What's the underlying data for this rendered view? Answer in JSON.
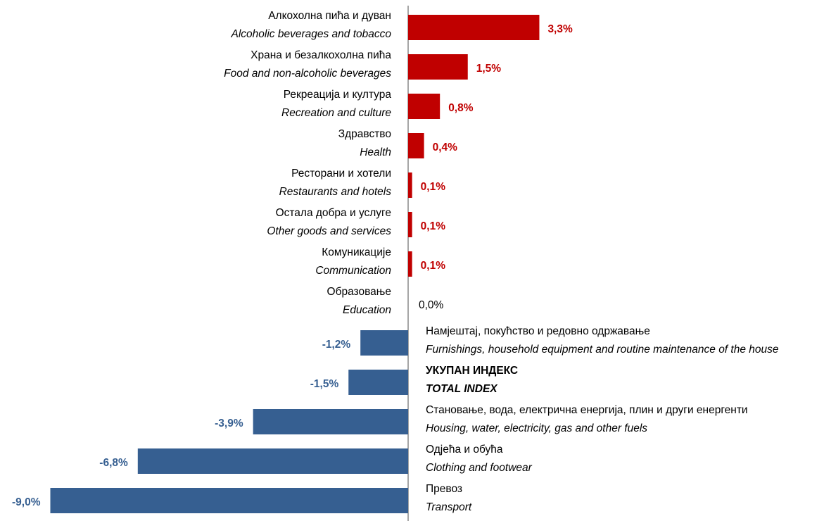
{
  "chart_data": {
    "type": "bar",
    "orientation": "horizontal",
    "categories": [
      [
        "Алкохолна пића и дуван",
        "Alcoholic beverages and tobacco"
      ],
      [
        "Храна и безалкохолна пића",
        "Food and non-alcoholic beverages"
      ],
      [
        "Рекреација и култура",
        "Recreation and culture"
      ],
      [
        "Здравство",
        "Health"
      ],
      [
        "Ресторани и хотели",
        "Restaurants and hotels"
      ],
      [
        "Остала добра и услуге",
        "Other goods and services"
      ],
      [
        "Комуникације",
        "Communication"
      ],
      [
        "Образовање",
        "Education"
      ],
      [
        "Намјештај, покућство и редовно одржавање",
        "Furnishings, household equipment and routine maintenance of the house"
      ],
      [
        "УКУПАН ИНДЕКС",
        "TOTAL INDEX"
      ],
      [
        "Становање, вода, електрична енергија, плин и други енергенти",
        "Housing, water, electricity, gas and other fuels"
      ],
      [
        "Одјећа и обућа",
        "Clothing and footwear"
      ],
      [
        "Превоз",
        "Transport"
      ]
    ],
    "values": [
      3.3,
      1.5,
      0.8,
      0.4,
      0.1,
      0.1,
      0.1,
      0.0,
      -1.2,
      -1.5,
      -3.9,
      -6.8,
      -9.0
    ],
    "value_labels": [
      "3,3%",
      "1,5%",
      "0,8%",
      "0,4%",
      "0,1%",
      "0,1%",
      "0,1%",
      "0,0%",
      "-1,2%",
      "-1,5%",
      "-3,9%",
      "-6,8%",
      "-9,0%"
    ],
    "positive_color": "#c00000",
    "negative_color": "#365f91",
    "total_index": 9
  }
}
